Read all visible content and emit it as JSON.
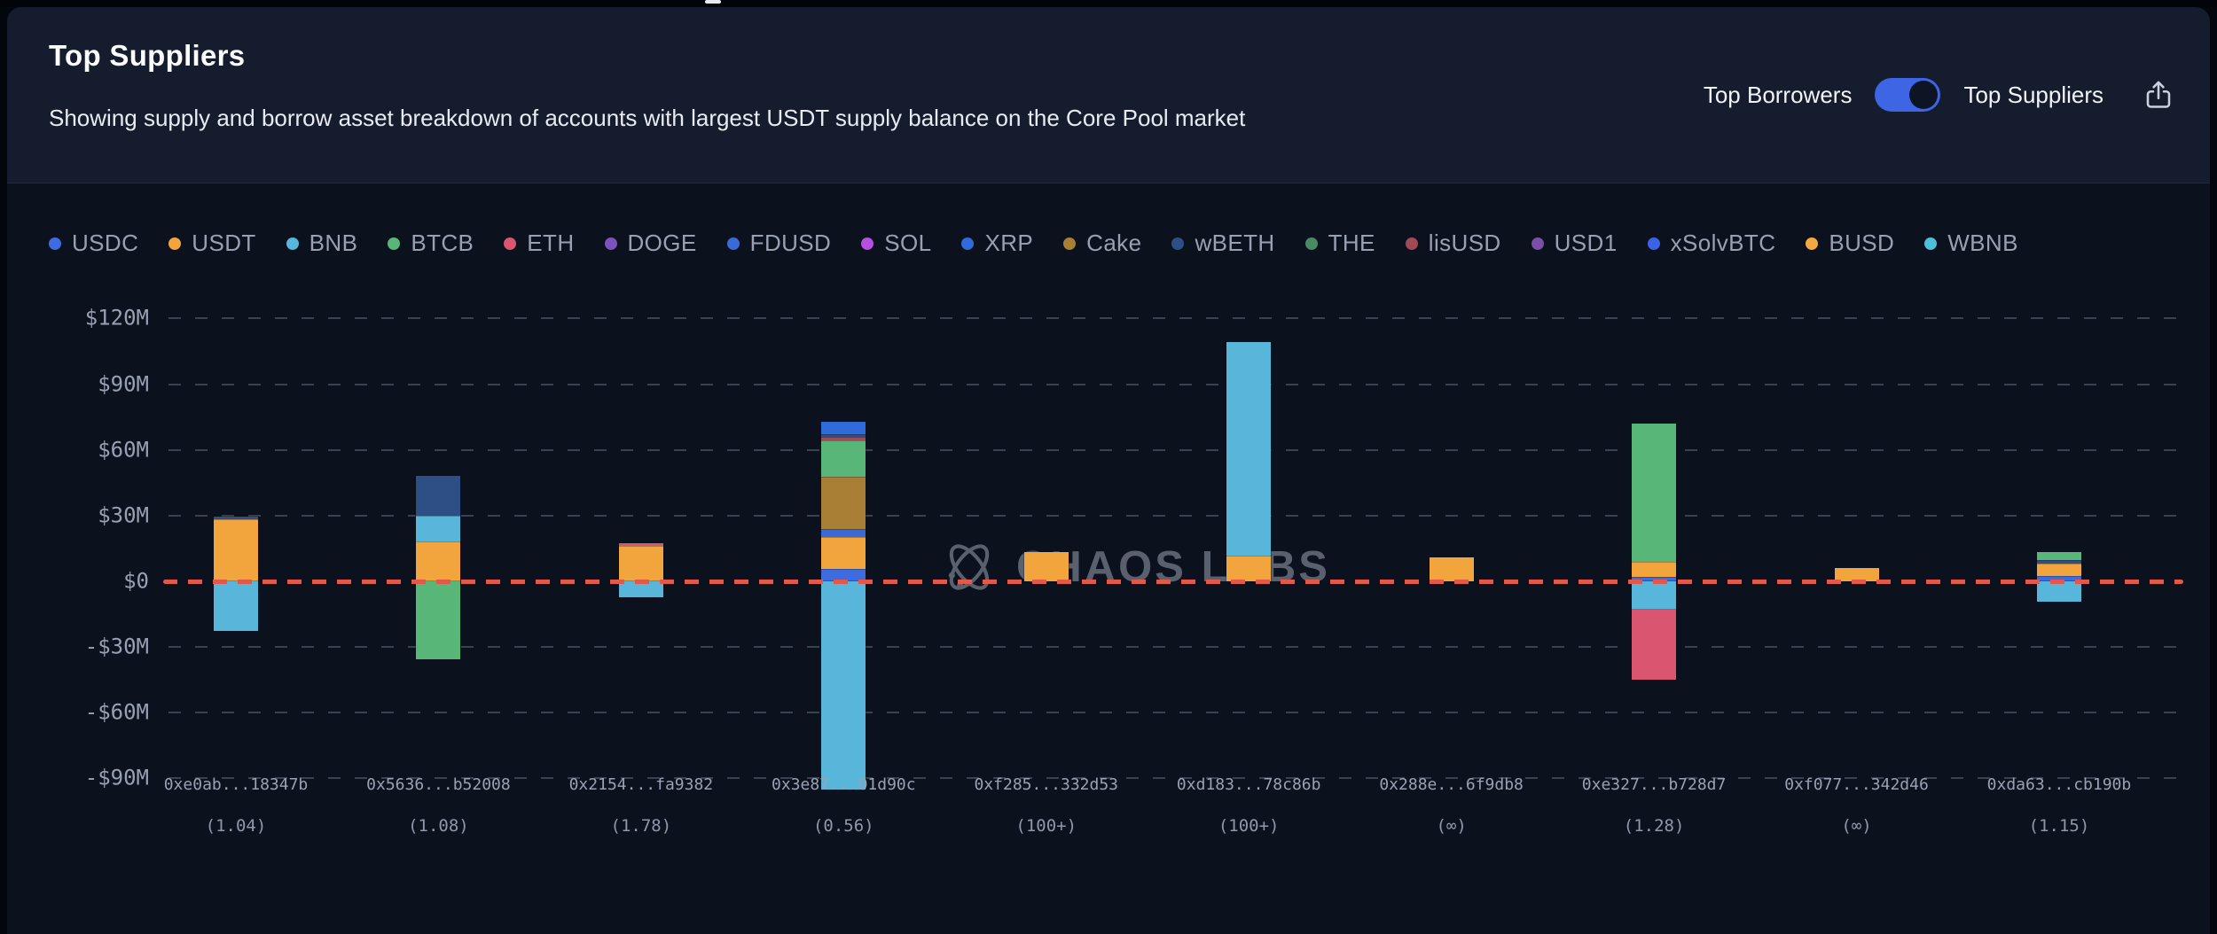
{
  "header": {
    "title": "Top Suppliers",
    "subtitle": "Showing supply and borrow asset breakdown of accounts with largest USDT supply balance on the Core Pool market",
    "toggle": {
      "left_label": "Top Borrowers",
      "right_label": "Top Suppliers",
      "state": "right",
      "accent_color": "#3d65e4"
    }
  },
  "icons": {
    "share": "export-arrow-up-from-box",
    "watermark_logo": "chaos-labs-globe"
  },
  "watermark": {
    "text": "CHAOS LABS"
  },
  "chart_data": {
    "type": "bar",
    "stacked": true,
    "title": "Top Suppliers",
    "unit": "$M (USD value)",
    "grid": "horizontal-dashed",
    "legend_position": "top",
    "zero_line_color": "#e2584a",
    "ylim": [
      -95,
      130
    ],
    "yticks": [
      "$120M",
      "$90M",
      "$60M",
      "$30M",
      "$0",
      "-$30M",
      "-$60M",
      "-$90M"
    ],
    "ytick_values": [
      120,
      90,
      60,
      30,
      0,
      -30,
      -60,
      -90
    ],
    "legend": [
      "USDC",
      "USDT",
      "BNB",
      "BTCB",
      "ETH",
      "DOGE",
      "FDUSD",
      "SOL",
      "XRP",
      "Cake",
      "wBETH",
      "THE",
      "lisUSD",
      "USD1",
      "xSolvBTC",
      "BUSD",
      "WBNB"
    ],
    "colors": {
      "USDC": "#3e6ce0",
      "USDT": "#f2a53c",
      "BNB": "#57b6d9",
      "BTCB": "#57b678",
      "ETH": "#da5570",
      "DOGE": "#7e52bc",
      "FDUSD": "#3a6ad8",
      "SOL": "#b44fe0",
      "XRP": "#2f6bdb",
      "Cake": "#a97f35",
      "wBETH": "#2d4f86",
      "THE": "#4a8a62",
      "lisUSD": "#a04a56",
      "USD1": "#7a4fa8",
      "xSolvBTC": "#3b63e8",
      "BUSD": "#f0a940",
      "WBNB": "#4cc0d9"
    },
    "categories": [
      "0xe0ab...18347b",
      "0x5636...b52008",
      "0x2154...fa9382",
      "0x3e87...01d90c",
      "0xf285...332d53",
      "0xd183...78c86b",
      "0x288e...6f9db8",
      "0xe327...b728d7",
      "0xf077...342d46",
      "0xda63...cb190b"
    ],
    "ratios": [
      "(1.04)",
      "(1.08)",
      "(1.78)",
      "(0.56)",
      "(100+)",
      "(100+)",
      "(∞)",
      "(1.28)",
      "(∞)",
      "(1.15)"
    ],
    "bars": [
      {
        "address": "0xe0ab...18347b",
        "ratio": "(1.04)",
        "supply": [
          {
            "asset": "USDT",
            "value": 28.5
          },
          {
            "asset": "wBETH",
            "value": 1.2
          }
        ],
        "borrow": [
          {
            "asset": "BNB",
            "value": 22.5
          }
        ]
      },
      {
        "address": "0x5636...b52008",
        "ratio": "(1.08)",
        "supply": [
          {
            "asset": "USDT",
            "value": 18.2
          },
          {
            "asset": "BNB",
            "value": 11.8
          },
          {
            "asset": "wBETH",
            "value": 18.2
          }
        ],
        "borrow": [
          {
            "asset": "BTCB",
            "value": 35.6
          }
        ]
      },
      {
        "address": "0x2154...fa9382",
        "ratio": "(1.78)",
        "supply": [
          {
            "asset": "USDT",
            "value": 16
          },
          {
            "asset": "ETH",
            "value": 1.5
          }
        ],
        "borrow": [
          {
            "asset": "BNB",
            "value": 7.3
          }
        ]
      },
      {
        "address": "0x3e87...01d90c",
        "ratio": "(0.56)",
        "supply": [
          {
            "asset": "USDC",
            "value": 5.5
          },
          {
            "asset": "USDT",
            "value": 14.8
          },
          {
            "asset": "FDUSD",
            "value": 3.5
          },
          {
            "asset": "Cake",
            "value": 24
          },
          {
            "asset": "BTCB",
            "value": 16.5
          },
          {
            "asset": "lisUSD",
            "value": 1.5
          },
          {
            "asset": "wBETH",
            "value": 1.5
          },
          {
            "asset": "XRP",
            "value": 5.5
          }
        ],
        "borrow": [
          {
            "asset": "BNB",
            "value": 95
          }
        ]
      },
      {
        "address": "0xf285...332d53",
        "ratio": "(100+)",
        "supply": [
          {
            "asset": "USDT",
            "value": 13.5
          }
        ],
        "borrow": []
      },
      {
        "address": "0xd183...78c86b",
        "ratio": "(100+)",
        "supply": [
          {
            "asset": "USDT",
            "value": 11.8
          },
          {
            "asset": "BNB",
            "value": 97.5
          }
        ],
        "borrow": []
      },
      {
        "address": "0x288e...6f9db8",
        "ratio": "(∞)",
        "supply": [
          {
            "asset": "USDT",
            "value": 11
          }
        ],
        "borrow": []
      },
      {
        "address": "0xe327...b728d7",
        "ratio": "(1.28)",
        "supply": [
          {
            "asset": "USDC",
            "value": 2
          },
          {
            "asset": "USDT",
            "value": 7
          },
          {
            "asset": "BTCB",
            "value": 63
          }
        ],
        "borrow": [
          {
            "asset": "BNB",
            "value": 13
          },
          {
            "asset": "ETH",
            "value": 32
          }
        ]
      },
      {
        "address": "0xf077...342d46",
        "ratio": "(∞)",
        "supply": [
          {
            "asset": "USDT",
            "value": 6
          }
        ],
        "borrow": []
      },
      {
        "address": "0xda63...cb190b",
        "ratio": "(1.15)",
        "supply": [
          {
            "asset": "USDC",
            "value": 2.3
          },
          {
            "asset": "USDT",
            "value": 5.7
          },
          {
            "asset": "wBETH",
            "value": 1.7
          },
          {
            "asset": "BTCB",
            "value": 3.8
          }
        ],
        "borrow": [
          {
            "asset": "BNB",
            "value": 9.3
          }
        ]
      }
    ]
  }
}
